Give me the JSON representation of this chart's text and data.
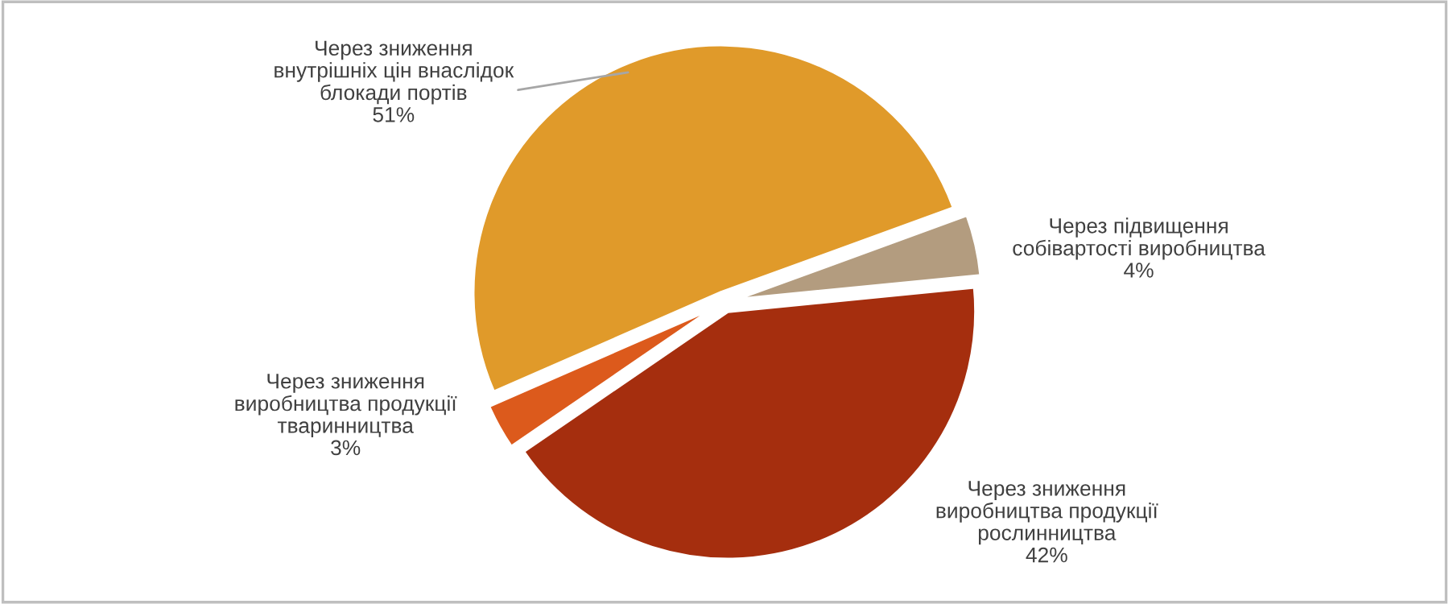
{
  "chart_data": {
    "type": "pie",
    "categories": [
      "Через зниження\nвнутрішніх цін внаслідок\nблокади портів",
      "Через зниження\nвиробництва продукції\nтваринництва",
      "Через зниження\nвиробництва продукції\nрослинництва",
      "Через підвищення\nсобівартості виробництва"
    ],
    "values": [
      51,
      3,
      42,
      4
    ],
    "value_labels": [
      "51%",
      "3%",
      "42%",
      "4%"
    ],
    "colors": [
      "#e09a2a",
      "#dc5a1c",
      "#a52e0e",
      "#b39c7f"
    ],
    "legend": false
  }
}
